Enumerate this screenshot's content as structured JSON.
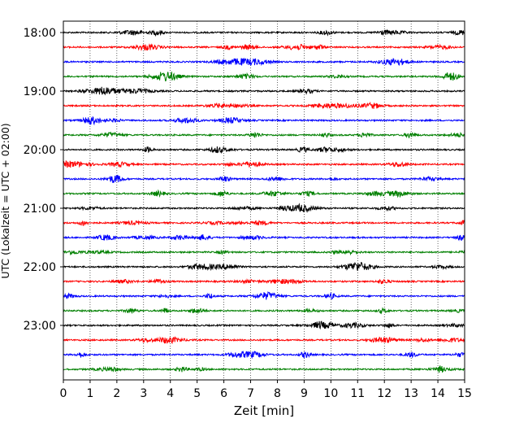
{
  "chart_data": {
    "type": "line",
    "title": "",
    "xlabel": "Zeit  [min]",
    "ylabel": "UTC (Lokalzeit = UTC + 02:00)",
    "xlim": [
      0,
      15
    ],
    "x_ticks": [
      0,
      1,
      2,
      3,
      4,
      5,
      6,
      7,
      8,
      9,
      10,
      11,
      12,
      13,
      14,
      15
    ],
    "x_tick_labels": [
      "0",
      "1",
      "2",
      "3",
      "4",
      "5",
      "6",
      "7",
      "8",
      "9",
      "10",
      "11",
      "12",
      "13",
      "14",
      "15"
    ],
    "grid": "vertical dotted lines at each minute",
    "trace_interval_minutes": 15,
    "trace_colors": [
      "#000000",
      "#ff0000",
      "#0000ff",
      "#008000"
    ],
    "y_ticks": [
      "18:00",
      "19:00",
      "20:00",
      "21:00",
      "22:00",
      "23:00"
    ],
    "series": [
      {
        "start": "18:00",
        "color": "#000000"
      },
      {
        "start": "18:15",
        "color": "#ff0000"
      },
      {
        "start": "18:30",
        "color": "#0000ff"
      },
      {
        "start": "18:45",
        "color": "#008000"
      },
      {
        "start": "19:00",
        "color": "#000000"
      },
      {
        "start": "19:15",
        "color": "#ff0000"
      },
      {
        "start": "19:30",
        "color": "#0000ff"
      },
      {
        "start": "19:45",
        "color": "#008000"
      },
      {
        "start": "20:00",
        "color": "#000000"
      },
      {
        "start": "20:15",
        "color": "#ff0000"
      },
      {
        "start": "20:30",
        "color": "#0000ff"
      },
      {
        "start": "20:45",
        "color": "#008000"
      },
      {
        "start": "21:00",
        "color": "#000000"
      },
      {
        "start": "21:15",
        "color": "#ff0000"
      },
      {
        "start": "21:30",
        "color": "#0000ff"
      },
      {
        "start": "21:45",
        "color": "#008000"
      },
      {
        "start": "22:00",
        "color": "#000000"
      },
      {
        "start": "22:15",
        "color": "#ff0000"
      },
      {
        "start": "22:30",
        "color": "#0000ff"
      },
      {
        "start": "22:45",
        "color": "#008000"
      },
      {
        "start": "23:00",
        "color": "#000000"
      },
      {
        "start": "23:15",
        "color": "#ff0000"
      },
      {
        "start": "23:30",
        "color": "#0000ff"
      },
      {
        "start": "23:45",
        "color": "#008000"
      }
    ]
  }
}
